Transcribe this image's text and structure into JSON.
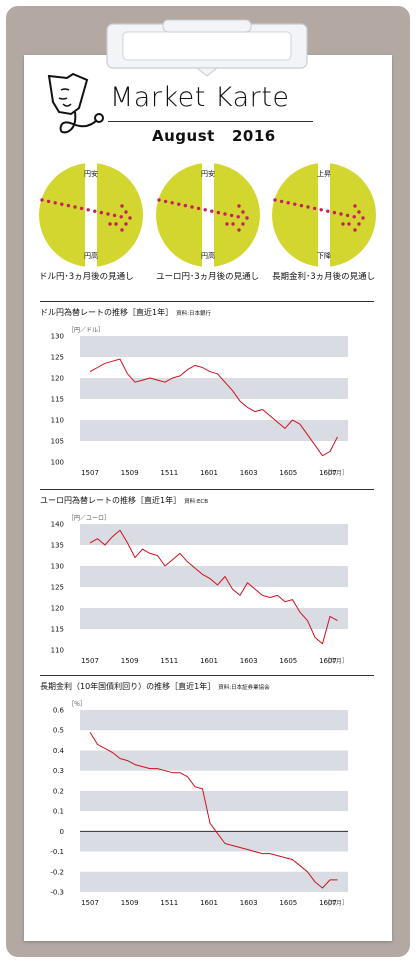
{
  "header": {
    "title": "Market Karte",
    "subtitle": "August   2016"
  },
  "gauges": [
    {
      "top": "円安",
      "bottom": "円高",
      "caption": "ドル円･3ヵ月後の見通し"
    },
    {
      "top": "円安",
      "bottom": "円高",
      "caption": "ユーロ円･3ヵ月後の見通し"
    },
    {
      "top": "上昇",
      "bottom": "下降",
      "caption": "長期金利･3ヵ月後の見通し"
    }
  ],
  "colors": {
    "gauge_fill": "#d4d630",
    "arrow": "#c4205a",
    "band": "#d9dde3",
    "line": "#d0101e"
  },
  "chart_data": [
    {
      "type": "line",
      "title": "ドル円為替レートの推移［直近1年］",
      "source": "資料:日本銀行",
      "unit_label": "［円／ドル］",
      "x_unit": "［年月］",
      "ylim": [
        100,
        130
      ],
      "yticks": [
        "130",
        "125",
        "120",
        "115",
        "110",
        "105",
        "100"
      ],
      "xticks": [
        "1507",
        "1509",
        "1511",
        "1601",
        "1603",
        "1605",
        "1607"
      ],
      "series": [
        {
          "values": [
            121.5,
            122.5,
            123.5,
            124.0,
            124.5,
            121.0,
            119.0,
            119.5,
            120.0,
            119.5,
            119.0,
            120.0,
            120.5,
            122.0,
            123.0,
            122.5,
            121.5,
            121.0,
            119.0,
            117.0,
            114.5,
            113.0,
            112.0,
            112.5,
            111.0,
            109.5,
            108.0,
            110.0,
            109.0,
            106.5,
            104.0,
            101.5,
            102.5,
            106.0
          ]
        }
      ]
    },
    {
      "type": "line",
      "title": "ユーロ円為替レートの推移［直近1年］",
      "source": "資料:ECB",
      "unit_label": "［円／ユーロ］",
      "x_unit": "［年月］",
      "ylim": [
        110,
        140
      ],
      "yticks": [
        "140",
        "135",
        "130",
        "125",
        "120",
        "115",
        "110"
      ],
      "xticks": [
        "1507",
        "1509",
        "1511",
        "1601",
        "1603",
        "1605",
        "1607"
      ],
      "series": [
        {
          "values": [
            135.5,
            136.5,
            135.0,
            137.0,
            138.5,
            135.5,
            132.0,
            134.0,
            133.0,
            132.5,
            130.0,
            131.5,
            133.0,
            131.0,
            129.5,
            128.0,
            127.0,
            125.5,
            127.5,
            124.5,
            123.0,
            126.0,
            124.5,
            123.0,
            122.5,
            123.0,
            121.5,
            122.0,
            119.0,
            117.0,
            113.0,
            111.5,
            118.0,
            117.0
          ]
        }
      ]
    },
    {
      "type": "line",
      "title": "長期金利（10年国債利回り）の推移［直近1年］",
      "source": "資料:日本証券業協会",
      "unit_label": "［％］",
      "x_unit": "［年月］",
      "ylim": [
        -0.3,
        0.6
      ],
      "yticks": [
        "0.6",
        "0.5",
        "0.4",
        "0.3",
        "0.2",
        "0.1",
        "0",
        "-0.1",
        "-0.2",
        "-0.3"
      ],
      "xticks": [
        "1507",
        "1509",
        "1511",
        "1601",
        "1603",
        "1605",
        "1607"
      ],
      "series": [
        {
          "values": [
            0.49,
            0.43,
            0.41,
            0.39,
            0.36,
            0.35,
            0.33,
            0.32,
            0.31,
            0.31,
            0.3,
            0.29,
            0.29,
            0.27,
            0.22,
            0.21,
            0.04,
            -0.01,
            -0.06,
            -0.07,
            -0.08,
            -0.09,
            -0.1,
            -0.11,
            -0.11,
            -0.12,
            -0.13,
            -0.14,
            -0.17,
            -0.2,
            -0.25,
            -0.28,
            -0.24,
            -0.24
          ]
        }
      ]
    }
  ]
}
